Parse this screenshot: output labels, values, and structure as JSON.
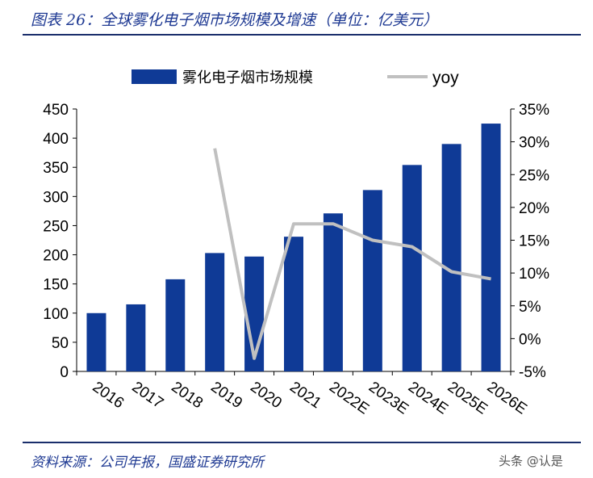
{
  "header": {
    "figure_title": "图表 26：全球雾化电子烟市场规模及增速（单位：亿美元）"
  },
  "footer": {
    "source": "资料来源：公司年报，国盛证券研究所",
    "watermark": "头条 @认是"
  },
  "colors": {
    "bar": "#0f3a96",
    "line": "#c0c0c0",
    "rule": "#1a2e6b",
    "title": "#1f3a93"
  },
  "chart_data": {
    "type": "bar+line",
    "categories": [
      "2016",
      "2017",
      "2018",
      "2019",
      "2020",
      "2021",
      "2022E",
      "2023E",
      "2024E",
      "2025E",
      "2026E"
    ],
    "series": [
      {
        "name": "雾化电子烟市场规模",
        "type": "bar",
        "axis": "left",
        "values": [
          100,
          115,
          158,
          203,
          197,
          231,
          271,
          311,
          354,
          390,
          425
        ]
      },
      {
        "name": "yoy",
        "type": "line",
        "axis": "right",
        "values": [
          null,
          null,
          null,
          29.0,
          -3.0,
          17.5,
          17.5,
          15.0,
          14.0,
          10.2,
          9.1
        ]
      }
    ],
    "left_axis": {
      "min": 0,
      "max": 450,
      "step": 50,
      "ticks": [
        "0",
        "50",
        "100",
        "150",
        "200",
        "250",
        "300",
        "350",
        "400",
        "450"
      ]
    },
    "right_axis": {
      "min": -5,
      "max": 35,
      "step": 5,
      "ticks": [
        "-5%",
        "0%",
        "5%",
        "10%",
        "15%",
        "20%",
        "25%",
        "30%",
        "35%"
      ]
    },
    "legend_position": "top"
  }
}
